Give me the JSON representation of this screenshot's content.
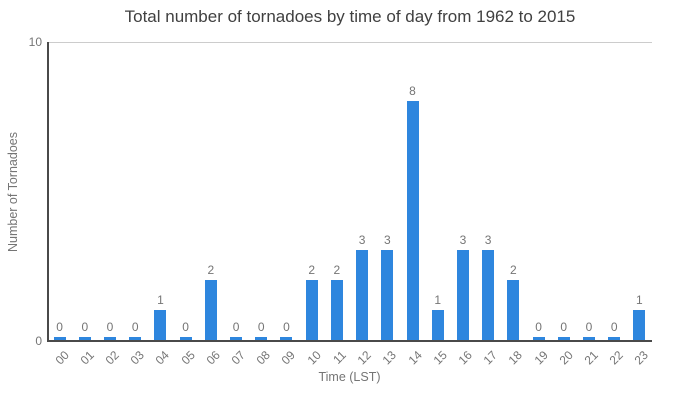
{
  "title": "Total number of tornadoes by time of day from 1962 to 2015",
  "y_axis": {
    "label": "Number of Tornadoes",
    "tick_top": "10",
    "tick_bottom": "0"
  },
  "x_axis": {
    "label": "Time (LST)"
  },
  "chart_data": {
    "type": "bar",
    "title": "Total number of tornadoes by time of day from 1962 to 2015",
    "xlabel": "Time (LST)",
    "ylabel": "Number of Tornadoes",
    "categories": [
      "00",
      "01",
      "02",
      "03",
      "04",
      "05",
      "06",
      "07",
      "08",
      "09",
      "10",
      "11",
      "12",
      "13",
      "14",
      "15",
      "16",
      "17",
      "18",
      "19",
      "20",
      "21",
      "22",
      "23"
    ],
    "values": [
      0,
      0,
      0,
      0,
      1,
      0,
      2,
      0,
      0,
      0,
      2,
      2,
      3,
      3,
      8,
      1,
      3,
      3,
      2,
      0,
      0,
      0,
      0,
      1
    ],
    "data_labels": [
      0,
      0,
      0,
      0,
      1,
      0,
      2,
      0,
      0,
      0,
      2,
      2,
      3,
      3,
      8,
      1,
      3,
      3,
      2,
      0,
      0,
      0,
      0,
      1
    ],
    "ylim": [
      0,
      10
    ],
    "yticks": [
      0,
      10
    ],
    "grid": "top-gridline-only",
    "legend": false,
    "bar_color": "#2E86DE"
  },
  "colors": {
    "bar": "#2E86DE",
    "title_text": "#404040",
    "axis_text": "#757575",
    "spine": "#4a4a4a",
    "gridline": "#cccccc",
    "background": "#ffffff"
  }
}
